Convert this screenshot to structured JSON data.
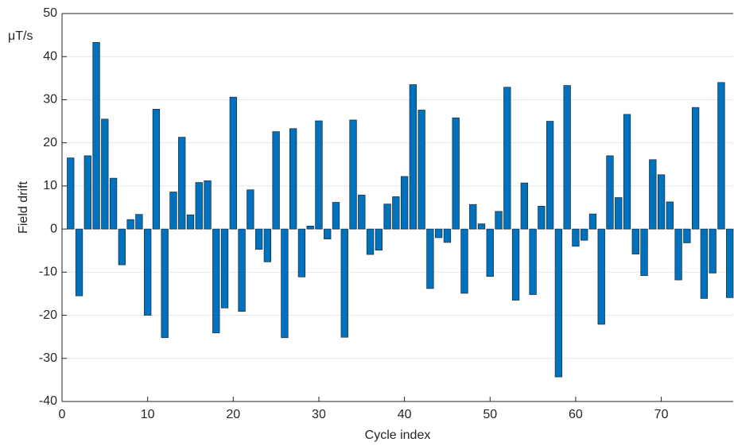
{
  "chart_data": {
    "type": "bar",
    "unit_label": "μT/s",
    "xlabel": "Cycle index",
    "ylabel": "Field drift",
    "x": [
      1,
      2,
      3,
      4,
      5,
      6,
      7,
      8,
      9,
      10,
      11,
      12,
      13,
      14,
      15,
      16,
      17,
      18,
      19,
      20,
      21,
      22,
      23,
      24,
      25,
      26,
      27,
      28,
      29,
      30,
      31,
      32,
      33,
      34,
      35,
      36,
      37,
      38,
      39,
      40,
      41,
      42,
      43,
      44,
      45,
      46,
      47,
      48,
      49,
      50,
      51,
      52,
      53,
      54,
      55,
      56,
      57,
      58,
      59,
      60,
      61,
      62,
      63,
      64,
      65,
      66,
      67,
      68,
      69,
      70,
      71,
      72,
      73,
      74,
      75,
      76,
      77,
      78
    ],
    "values": [
      16.5,
      -15.5,
      17,
      43.3,
      25.5,
      11.8,
      -8.3,
      2.2,
      3.4,
      -20,
      27.8,
      -25.2,
      8.6,
      21.3,
      3.3,
      10.8,
      11.2,
      -24.1,
      -18.3,
      30.6,
      -19.1,
      9.1,
      -4.7,
      -7.6,
      22.6,
      -25.2,
      23.3,
      -11.1,
      0.7,
      25.1,
      -2.3,
      6.2,
      -25.1,
      25.3,
      7.9,
      -5.9,
      -4.9,
      5.8,
      7.5,
      12.2,
      33.5,
      27.6,
      -13.8,
      -2,
      -3.1,
      25.8,
      -14.9,
      5.7,
      1.2,
      -11,
      4.1,
      32.9,
      -16.5,
      10.7,
      -15.2,
      5.3,
      25,
      -34.3,
      33.3,
      -4,
      -2.6,
      3.5,
      -22.1,
      17,
      7.3,
      26.6,
      -5.8,
      -10.8,
      16.1,
      12.6,
      6.3,
      -11.8,
      -3.2,
      28.2,
      -16.1,
      -10.2,
      34,
      -15.9
    ],
    "color": "#0072bd",
    "xlim": [
      0,
      78.4
    ],
    "ylim": [
      -40,
      50
    ],
    "xticks": [
      0,
      10,
      20,
      30,
      40,
      50,
      60,
      70
    ],
    "yticks": [
      -40,
      -30,
      -20,
      -10,
      0,
      10,
      20,
      30,
      40,
      50
    ],
    "grid": true
  }
}
